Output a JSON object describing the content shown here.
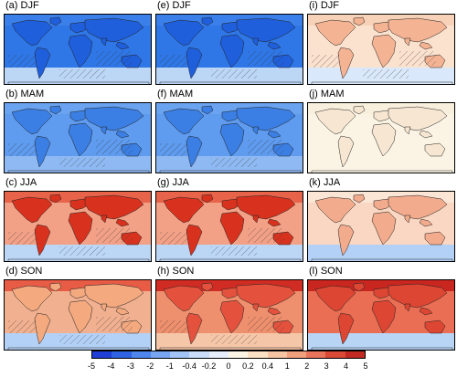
{
  "panels": [
    {
      "label": "(a) DJF",
      "base": "#2f77e6",
      "land": "#1f5fdc",
      "north": "#3b80ea",
      "south": "#bcd6f6",
      "hatch": true
    },
    {
      "label": "(e) DJF",
      "base": "#2f77e6",
      "land": "#1f5fdc",
      "north": "#3b80ea",
      "south": "#bcd6f6",
      "hatch": true
    },
    {
      "label": "(i) DJF",
      "base": "#fbe2cf",
      "land": "#f4b393",
      "north": "#f8d2b8",
      "south": "#d9e8fa",
      "hatch": true
    },
    {
      "label": "(b) MAM",
      "base": "#5f9bee",
      "land": "#3b7fe4",
      "north": "#6aa3ef",
      "south": "#8fb9f2",
      "hatch": true
    },
    {
      "label": "(f) MAM",
      "base": "#5f9bee",
      "land": "#3b7fe4",
      "north": "#6aa3ef",
      "south": "#8fb9f2",
      "hatch": true
    },
    {
      "label": "(j) MAM",
      "base": "#fbf4e4",
      "land": "#f7e7d2",
      "north": "#f9efdd",
      "south": "#fbf4e4",
      "hatch": false
    },
    {
      "label": "(c) JJA",
      "base": "#f3a186",
      "land": "#d8321f",
      "north": "#e7634a",
      "south": "#bcd6f6",
      "hatch": true
    },
    {
      "label": "(g) JJA",
      "base": "#f3a186",
      "land": "#d8321f",
      "north": "#e7634a",
      "south": "#bcd6f6",
      "hatch": true
    },
    {
      "label": "(k) JJA",
      "base": "#f9d7c2",
      "land": "#f2ab8c",
      "north": "#fbe5d4",
      "south": "#b3d1f6",
      "hatch": false
    },
    {
      "label": "(d) SON",
      "base": "#f1b08f",
      "land": "#f4a97f",
      "north": "#e85b45",
      "south": "#b3d1f6",
      "hatch": true
    },
    {
      "label": "(h) SON",
      "base": "#ee8f6d",
      "land": "#e4523d",
      "north": "#d12c23",
      "south": "#f6c6a8",
      "hatch": true
    },
    {
      "label": "(l) SON",
      "base": "#ea6e54",
      "land": "#dd4632",
      "north": "#c92620",
      "south": "#b8d5f6",
      "hatch": false
    }
  ],
  "colorbar": {
    "colors": [
      "#1f3fd6",
      "#2f63e3",
      "#4f86ec",
      "#78a5f1",
      "#a2c3f5",
      "#c9dcf8",
      "#e6eefb",
      "#fbf4e4",
      "#fae0c4",
      "#f6c3a3",
      "#f1a07e",
      "#e7745b",
      "#d94935",
      "#c02a22"
    ],
    "ticks": [
      "-5",
      "-4",
      "-3",
      "-2",
      "-1",
      "-0.4",
      "-0.2",
      "0",
      "0.2",
      "0.4",
      "1",
      "2",
      "3",
      "4",
      "5"
    ]
  }
}
